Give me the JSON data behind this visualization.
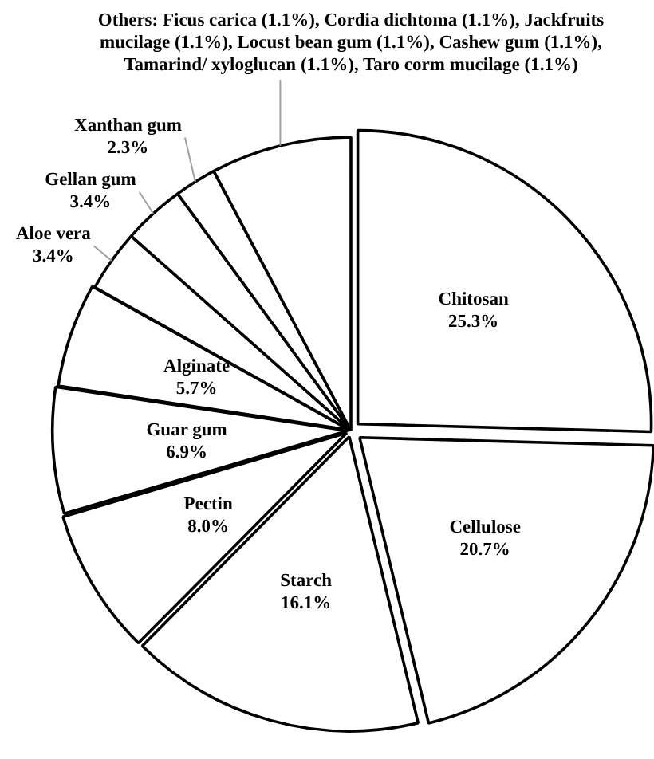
{
  "chart_data": {
    "type": "pie",
    "categories": [
      "Chitosan",
      "Cellulose",
      "Starch",
      "Pectin",
      "Guar gum",
      "Alginate",
      "Aloe vera",
      "Gellan gum",
      "Xanthan gum",
      "Others: Ficus carica (1.1%), Cordia dichtoma (1.1%), Jackfruits mucilage (1.1%), Locust bean gum (1.1%), Cashew gum (1.1%), Tamarind/ xyloglucan (1.1%), Taro corm mucilage (1.1%)"
    ],
    "values": [
      25.3,
      20.7,
      16.1,
      8.0,
      6.9,
      5.7,
      3.4,
      3.4,
      2.3,
      7.7
    ],
    "colors": [
      "#ffffff",
      "#ffffff",
      "#ffffff",
      "#ffffff",
      "#ffffff",
      "#ffffff",
      "#ffffff",
      "#ffffff",
      "#ffffff",
      "#ffffff"
    ],
    "value_labels": [
      "25.3%",
      "20.7%",
      "16.1%",
      "8.0%",
      "6.9%",
      "5.7%",
      "3.4%",
      "3.4%",
      "2.3%",
      null
    ],
    "legend": false
  }
}
